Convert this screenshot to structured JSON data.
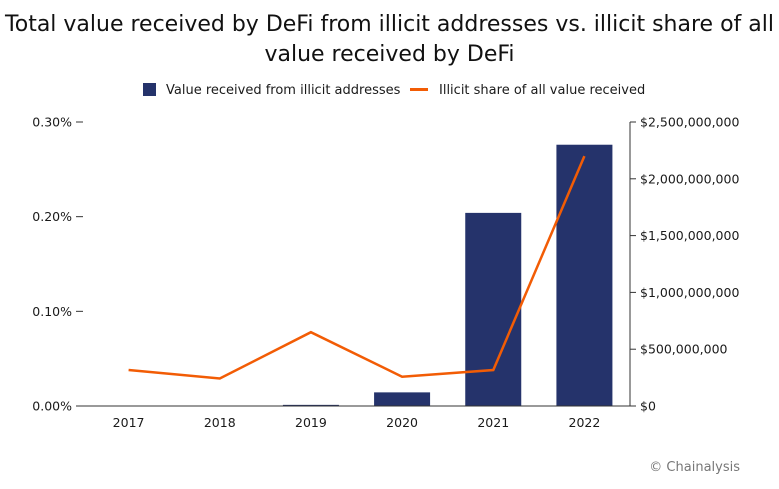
{
  "chart_data": {
    "type": "bar",
    "title": "Total value received by DeFi from illicit addresses vs. illicit share of all value received by DeFi",
    "categories": [
      "2017",
      "2018",
      "2019",
      "2020",
      "2021",
      "2022"
    ],
    "series": [
      {
        "name": "Value received from illicit addresses",
        "type": "bar",
        "axis": "right",
        "color": "#25336b",
        "values": [
          0,
          0,
          10000000,
          120000000,
          1700000000,
          2300000000
        ]
      },
      {
        "name": "Illicit share of all value received",
        "type": "line",
        "axis": "left",
        "color": "#f25c05",
        "values": [
          0.038,
          0.029,
          0.078,
          0.031,
          0.038,
          0.264
        ]
      }
    ],
    "y_left": {
      "range": [
        0,
        0.3
      ],
      "ticks": [
        0,
        0.1,
        0.2,
        0.3
      ],
      "tick_labels": [
        "0.00%",
        "0.10%",
        "0.20%",
        "0.30%"
      ]
    },
    "y_right": {
      "range": [
        0,
        2500000000
      ],
      "ticks": [
        0,
        500000000,
        1000000000,
        1500000000,
        2000000000,
        2500000000
      ],
      "tick_labels": [
        "$0",
        "$500,000,000",
        "$1,000,000,000",
        "$1,500,000,000",
        "$2,000,000,000",
        "$2,500,000,000"
      ]
    },
    "legend_position": "top-center",
    "grid": false
  },
  "credit": "© Chainalysis"
}
